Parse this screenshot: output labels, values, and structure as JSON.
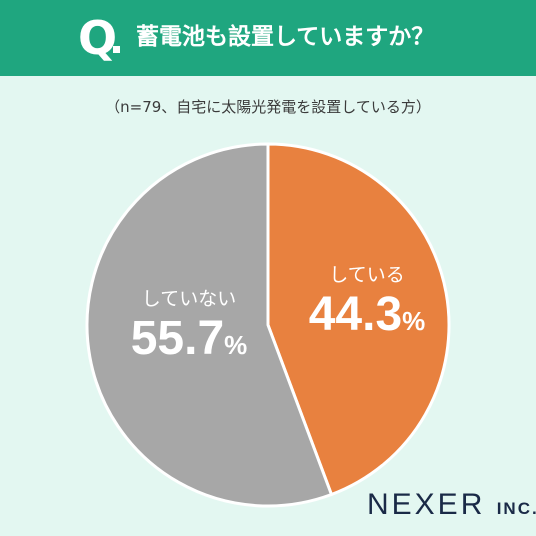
{
  "header": {
    "q_mark": "Q",
    "question": "蓄電池も設置していますか？"
  },
  "note": "（n=79、自宅に太陽光発電を設置している方）",
  "brand": {
    "name": "NEXER",
    "suffix": "INC."
  },
  "colors": {
    "header_bg": "#1fa67f",
    "page_bg": "#e3f7f1",
    "slice_yes": "#e8813f",
    "slice_no": "#a7a7a7"
  },
  "chart_data": {
    "type": "pie",
    "title": "蓄電池も設置していますか？",
    "slices": [
      {
        "label": "している",
        "value": 44.3,
        "display": "44.3",
        "unit": "%",
        "color": "#e8813f"
      },
      {
        "label": "していない",
        "value": 55.7,
        "display": "55.7",
        "unit": "%",
        "color": "#a7a7a7"
      }
    ],
    "start_angle": "12 o'clock",
    "direction": "clockwise"
  }
}
